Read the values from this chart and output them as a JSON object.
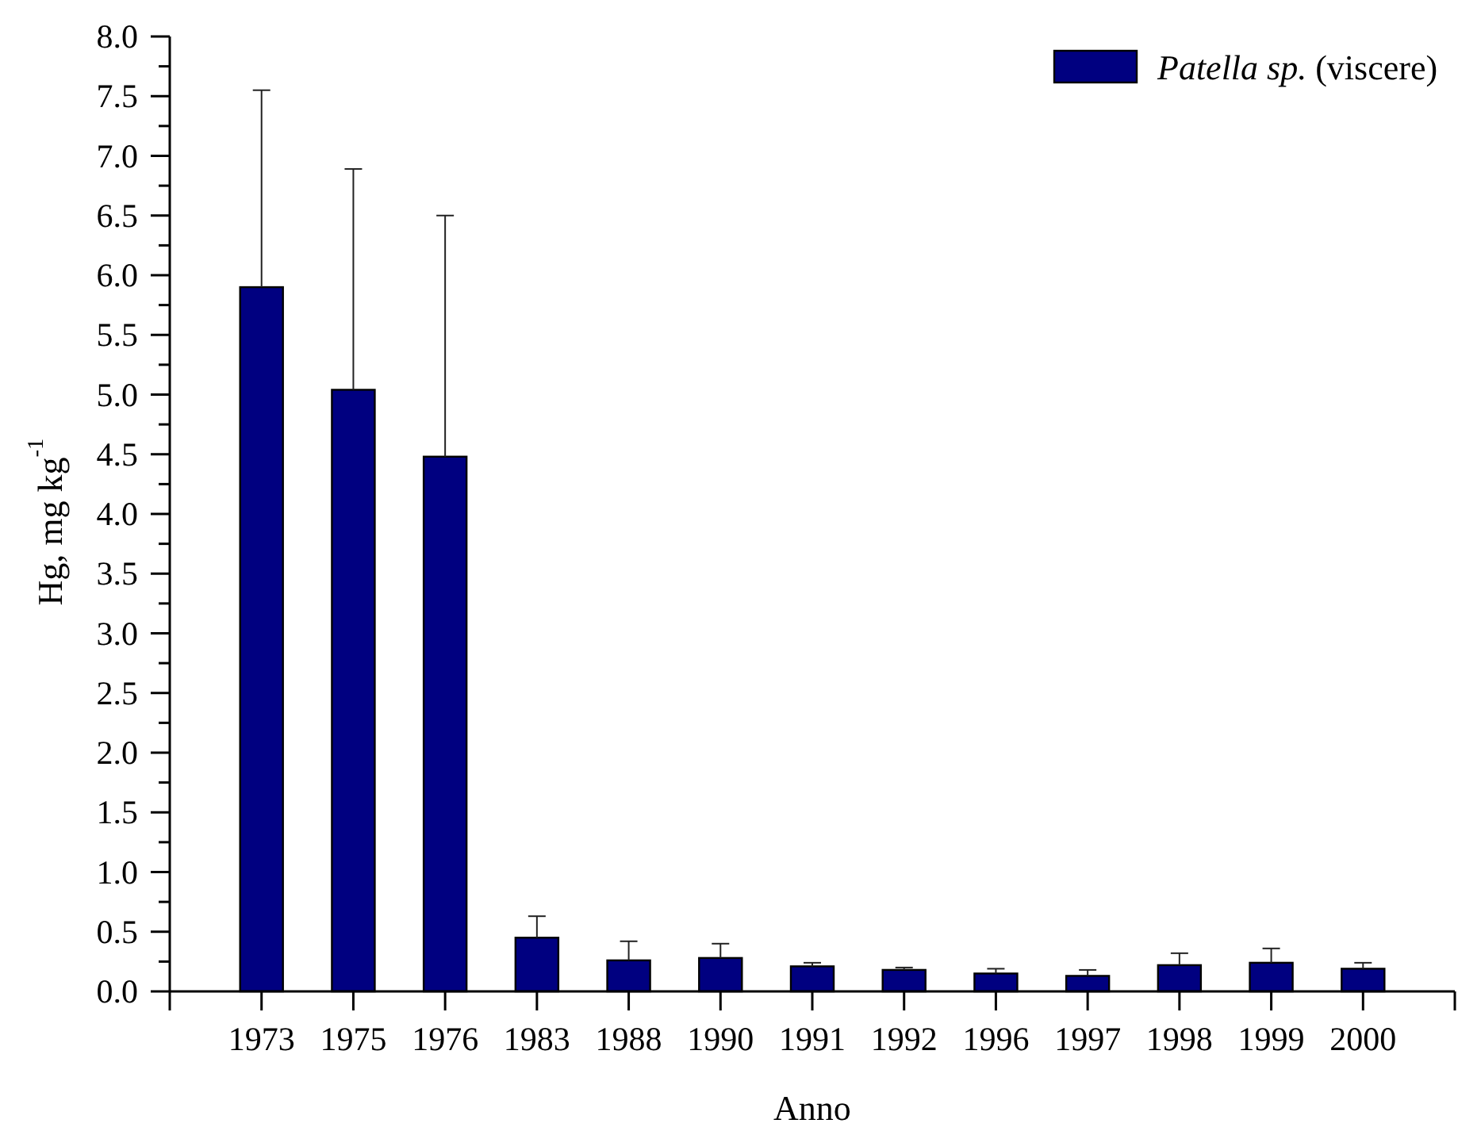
{
  "chart_data": {
    "type": "bar",
    "xlabel": "Anno",
    "ylabel": "Hg, mg kg$^{-1}$",
    "categories": [
      "1973",
      "1975",
      "1976",
      "1983",
      "1988",
      "1990",
      "1991",
      "1992",
      "1996",
      "1997",
      "1998",
      "1999",
      "2000"
    ],
    "series": [
      {
        "name": "Patella sp. (viscere)",
        "color": "#000080",
        "values": [
          5.9,
          5.04,
          4.48,
          0.45,
          0.26,
          0.28,
          0.21,
          0.18,
          0.15,
          0.13,
          0.22,
          0.24,
          0.19
        ],
        "errors": [
          [
            5.9,
            7.55
          ],
          [
            5.04,
            6.89
          ],
          [
            4.48,
            6.5
          ],
          [
            0.45,
            0.63
          ],
          [
            0.26,
            0.42
          ],
          [
            0.28,
            0.4
          ],
          [
            0.21,
            0.24
          ],
          [
            0.18,
            0.2
          ],
          [
            0.15,
            0.19
          ],
          [
            0.13,
            0.18
          ],
          [
            0.22,
            0.32
          ],
          [
            0.24,
            0.36
          ],
          [
            0.19,
            0.24
          ]
        ]
      }
    ],
    "ylim": [
      0,
      8
    ],
    "yticks": [
      {
        "value": 0,
        "label": "0.0"
      },
      {
        "value": 0.25,
        "label": null
      },
      {
        "value": 0.5,
        "label": "0.5"
      },
      {
        "value": 0.75,
        "label": null
      },
      {
        "value": 1,
        "label": "1.0"
      },
      {
        "value": 1.25,
        "label": null
      },
      {
        "value": 1.5,
        "label": "1.5"
      },
      {
        "value": 1.75,
        "label": null
      },
      {
        "value": 2,
        "label": "2.0"
      },
      {
        "value": 2.25,
        "label": null
      },
      {
        "value": 2.5,
        "label": "2.5"
      },
      {
        "value": 2.75,
        "label": null
      },
      {
        "value": 3,
        "label": "3.0"
      },
      {
        "value": 3.25,
        "label": null
      },
      {
        "value": 3.5,
        "label": "3.5"
      },
      {
        "value": 3.75,
        "label": null
      },
      {
        "value": 4,
        "label": "4.0"
      },
      {
        "value": 4.25,
        "label": null
      },
      {
        "value": 4.5,
        "label": "4.5"
      },
      {
        "value": 4.75,
        "label": null
      },
      {
        "value": 5,
        "label": "5.0"
      },
      {
        "value": 5.25,
        "label": null
      },
      {
        "value": 5.5,
        "label": "5.5"
      },
      {
        "value": 5.75,
        "label": null
      },
      {
        "value": 6,
        "label": "6.0"
      },
      {
        "value": 6.25,
        "label": null
      },
      {
        "value": 6.5,
        "label": "6.5"
      },
      {
        "value": 6.75,
        "label": null
      },
      {
        "value": 7,
        "label": "7.0"
      },
      {
        "value": 7.25,
        "label": null
      },
      {
        "value": 7.5,
        "label": "7.5"
      },
      {
        "value": 7.75,
        "label": null
      },
      {
        "value": 8,
        "label": "8.0"
      }
    ],
    "legend": "top right"
  }
}
